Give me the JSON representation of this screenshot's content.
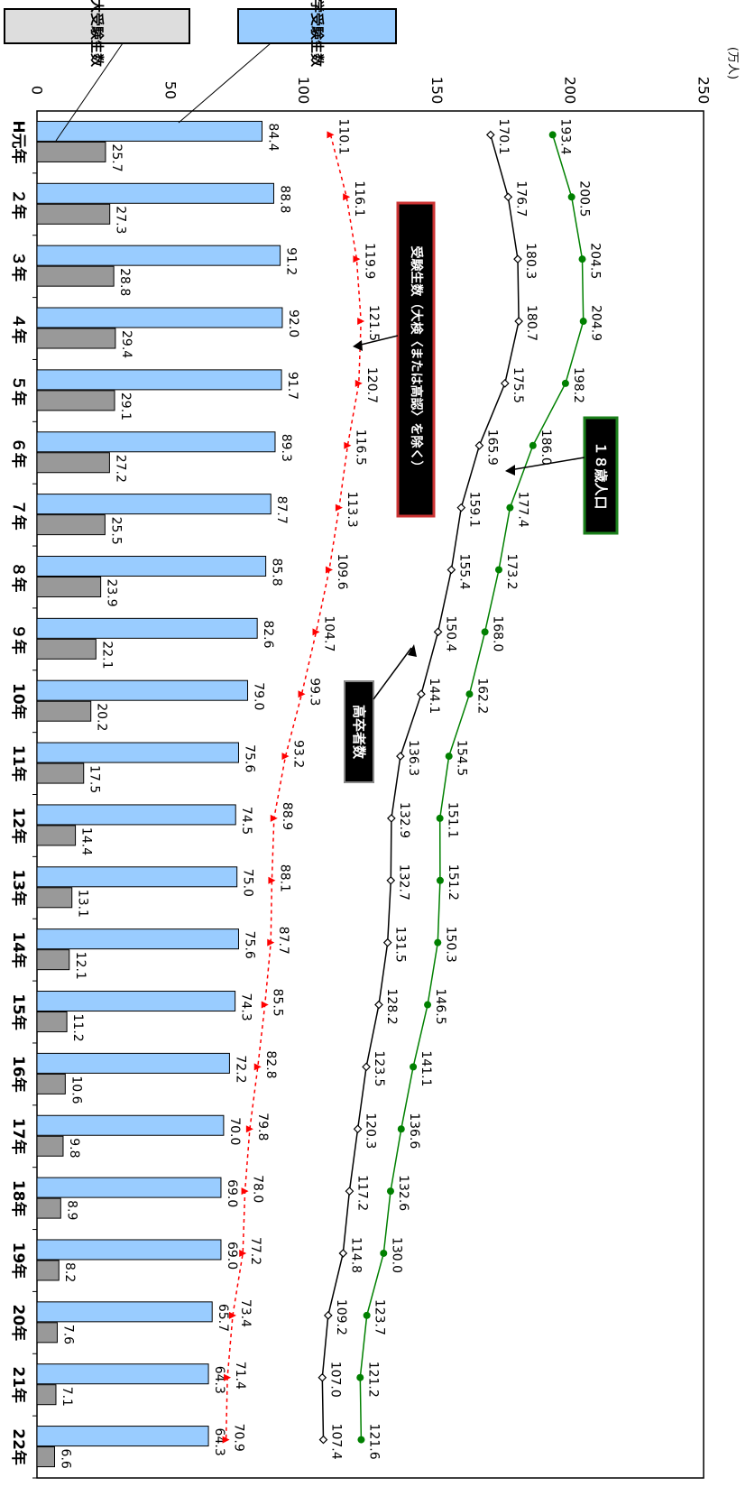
{
  "chart_data": {
    "type": "bar",
    "orientation": "rotated-90-clockwise",
    "unit": "(万人)",
    "value_axis": {
      "range": [
        0,
        250
      ],
      "ticks": [
        0,
        50,
        100,
        150,
        200,
        250
      ],
      "tick_labels": [
        "0",
        "50",
        "100",
        "150",
        "200",
        "250"
      ]
    },
    "categories": [
      "H元年",
      "２年",
      "３年",
      "４年",
      "５年",
      "６年",
      "７年",
      "８年",
      "９年",
      "10年",
      "11年",
      "12年",
      "13年",
      "14年",
      "15年",
      "16年",
      "17年",
      "18年",
      "19年",
      "20年",
      "21年",
      "22年"
    ],
    "bar_series": [
      {
        "name": "大学受験生数",
        "color": "#99ccff",
        "values": [
          84.4,
          88.8,
          91.2,
          92.0,
          91.7,
          89.3,
          87.7,
          85.8,
          82.6,
          79.0,
          75.6,
          74.5,
          75.0,
          75.6,
          74.3,
          72.2,
          70.0,
          69.0,
          69.0,
          65.7,
          64.3,
          64.3
        ],
        "labels": [
          "84.4",
          "88.8",
          "91.2",
          "92.0",
          "91.7",
          "89.3",
          "87.7",
          "85.8",
          "82.6",
          "79.0",
          "75.6",
          "74.5",
          "75.0",
          "75.6",
          "74.3",
          "72.2",
          "70.0",
          "69.0",
          "69.0",
          "65.7",
          "64.3",
          "64.3"
        ]
      },
      {
        "name": "短大受験生数",
        "color": "#999999",
        "values": [
          25.7,
          27.3,
          28.8,
          29.4,
          29.1,
          27.2,
          25.5,
          23.9,
          22.1,
          20.2,
          17.5,
          14.4,
          13.1,
          12.1,
          11.2,
          10.6,
          9.8,
          8.9,
          8.2,
          7.6,
          7.1,
          6.6
        ],
        "labels": [
          "25.7",
          "27.3",
          "28.8",
          "29.4",
          "29.1",
          "27.2",
          "25.5",
          "23.9",
          "22.1",
          "20.2",
          "17.5",
          "14.4",
          "13.1",
          "12.1",
          "11.2",
          "10.6",
          "9.8",
          "8.9",
          "8.2",
          "7.6",
          "7.1",
          "6.6"
        ]
      }
    ],
    "line_series": [
      {
        "name": "１８歳人口",
        "color": "#008000",
        "marker": "circle",
        "values": [
          193.4,
          200.5,
          204.5,
          204.9,
          198.2,
          186.0,
          177.4,
          173.2,
          168.0,
          162.2,
          154.5,
          151.1,
          151.2,
          150.3,
          146.5,
          141.1,
          136.6,
          132.6,
          130.0,
          123.7,
          121.2,
          121.6
        ],
        "labels": [
          "193.4",
          "200.5",
          "204.5",
          "204.9",
          "198.2",
          "186.0",
          "177.4",
          "173.2",
          "168.0",
          "162.2",
          "154.5",
          "151.1",
          "151.2",
          "150.3",
          "146.5",
          "141.1",
          "136.6",
          "132.6",
          "130.0",
          "123.7",
          "121.2",
          "121.6"
        ]
      },
      {
        "name": "高卒者数",
        "color": "#000000",
        "marker": "diamond",
        "values": [
          170.1,
          176.7,
          180.3,
          180.7,
          175.5,
          165.9,
          159.1,
          155.4,
          150.4,
          144.1,
          136.3,
          132.9,
          132.7,
          131.5,
          128.2,
          123.5,
          120.3,
          117.2,
          114.8,
          109.2,
          107.0,
          107.4
        ],
        "labels": [
          "170.1",
          "176.7",
          "180.3",
          "180.7",
          "175.5",
          "165.9",
          "159.1",
          "155.4",
          "150.4",
          "144.1",
          "136.3",
          "132.9",
          "132.7",
          "131.5",
          "128.2",
          "123.5",
          "120.3",
          "117.2",
          "114.8",
          "109.2",
          "107.0",
          "107.4"
        ]
      },
      {
        "name": "受験生数（大検〈または高認〉を除く）",
        "color": "#ff0000",
        "marker": "triangle",
        "dashed": true,
        "values": [
          110.1,
          116.1,
          119.9,
          121.5,
          120.7,
          116.5,
          113.3,
          109.6,
          104.7,
          99.3,
          93.2,
          88.9,
          88.1,
          87.7,
          85.5,
          82.8,
          79.8,
          78.0,
          77.2,
          73.4,
          71.4,
          70.9
        ],
        "labels": [
          "110.1",
          "116.1",
          "119.9",
          "121.5",
          "120.7",
          "116.5",
          "113.3",
          "109.6",
          "104.7",
          "99.3",
          "93.2",
          "88.9",
          "88.1",
          "87.7",
          "85.5",
          "82.8",
          "79.8",
          "78.0",
          "77.2",
          "73.4",
          "71.4",
          "70.9"
        ]
      }
    ]
  }
}
